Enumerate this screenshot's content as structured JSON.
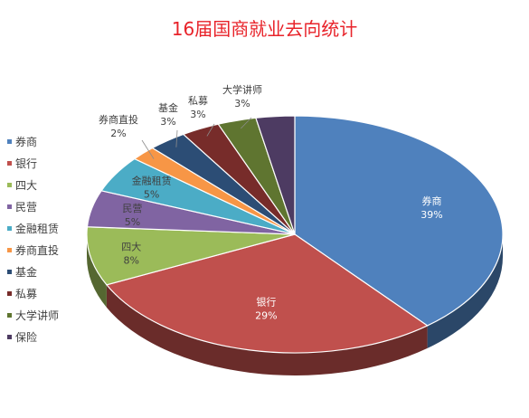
{
  "chart_data": {
    "type": "pie",
    "title": "16届国商就业去向统计",
    "legend_position": "left",
    "slices": [
      {
        "name": "券商",
        "value": 39,
        "label": "39%",
        "color": "#4f81bd"
      },
      {
        "name": "银行",
        "value": 29,
        "label": "29%",
        "color": "#c0504d"
      },
      {
        "name": "四大",
        "value": 8,
        "label": "8%",
        "color": "#9bbb59"
      },
      {
        "name": "民营",
        "value": 5,
        "label": "5%",
        "color": "#8064a2"
      },
      {
        "name": "金融租赁",
        "value": 5,
        "label": "5%",
        "color": "#4bacc6"
      },
      {
        "name": "券商直投",
        "value": 2,
        "label": "2%",
        "color": "#f79646"
      },
      {
        "name": "基金",
        "value": 3,
        "label": "3%",
        "color": "#2c4d75"
      },
      {
        "name": "私募",
        "value": 3,
        "label": "3%",
        "color": "#772c2a"
      },
      {
        "name": "大学讲师",
        "value": 3,
        "label": "3%",
        "color": "#5f7530"
      },
      {
        "name": "保险",
        "value": 3,
        "label": "",
        "color": "#4d3b62"
      }
    ]
  }
}
